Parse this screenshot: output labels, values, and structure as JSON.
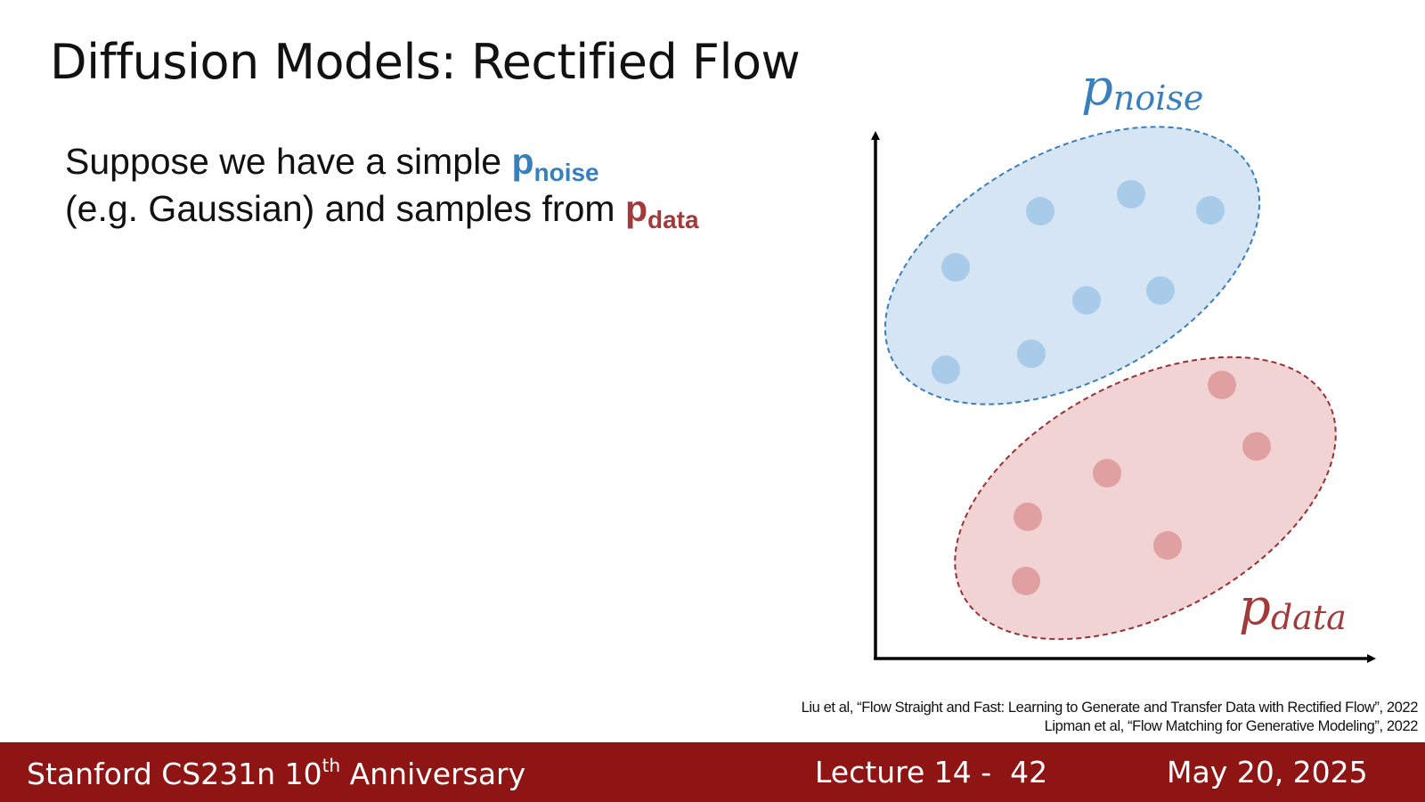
{
  "header": {
    "title": "Diffusion Models: Rectified Flow"
  },
  "body": {
    "line1": {
      "text": "Suppose we have a simple",
      "symbol": "p",
      "subscript": "noise"
    },
    "line2": {
      "text": "(e.g. Gaussian) and samples from",
      "symbol": "p",
      "subscript": "data"
    }
  },
  "diagram": {
    "noise_label": {
      "symbol": "p",
      "subscript": "noise"
    },
    "data_label": {
      "symbol": "p",
      "subscript": "data"
    }
  },
  "citations": [
    "Liu et al, “Flow Straight and Fast: Learning to Generate and Transfer Data with Rectified Flow”, 2022",
    "Lipman et al, “Flow Matching for Generative Modeling”, 2022"
  ],
  "footer": {
    "course": "Stanford CS231n 10",
    "course_superscript": "th",
    "course_suffix": "Anniversary",
    "lecture": "Lecture 14 -  42",
    "date": "May 20, 2025"
  }
}
